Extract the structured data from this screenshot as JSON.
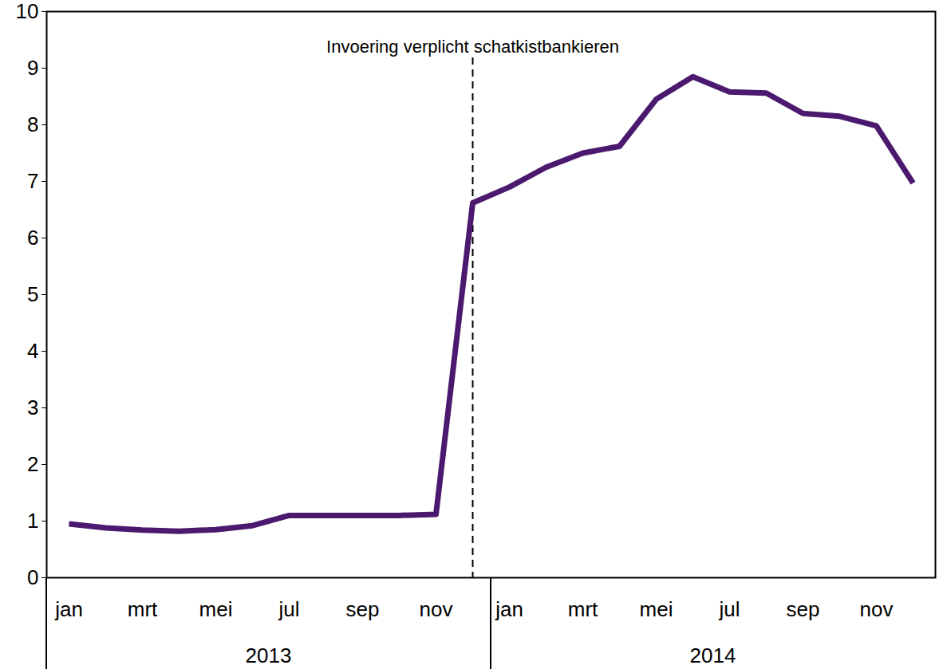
{
  "chart_data": {
    "type": "line",
    "categories": [
      "jan",
      null,
      "mrt",
      null,
      "mei",
      null,
      "jul",
      null,
      "sep",
      null,
      "nov",
      null,
      "jan",
      null,
      "mrt",
      null,
      "mei",
      null,
      "jul",
      null,
      "sep",
      null,
      "nov",
      null
    ],
    "group_labels": [
      "2013",
      "2014"
    ],
    "values": [
      0.95,
      0.88,
      0.84,
      0.82,
      0.85,
      0.92,
      1.1,
      1.1,
      1.1,
      1.1,
      1.12,
      6.62,
      6.9,
      7.25,
      7.5,
      7.62,
      8.45,
      8.85,
      8.58,
      8.56,
      8.2,
      8.15,
      7.98,
      6.97
    ],
    "color": "#4b1a6f",
    "ylim": [
      0,
      10
    ],
    "yticks": [
      0,
      1,
      2,
      3,
      4,
      5,
      6,
      7,
      8,
      9,
      10
    ],
    "grid": false,
    "annotations": [
      {
        "text": "Invoering verplicht schatkistbankieren",
        "category_index": 11
      }
    ]
  }
}
